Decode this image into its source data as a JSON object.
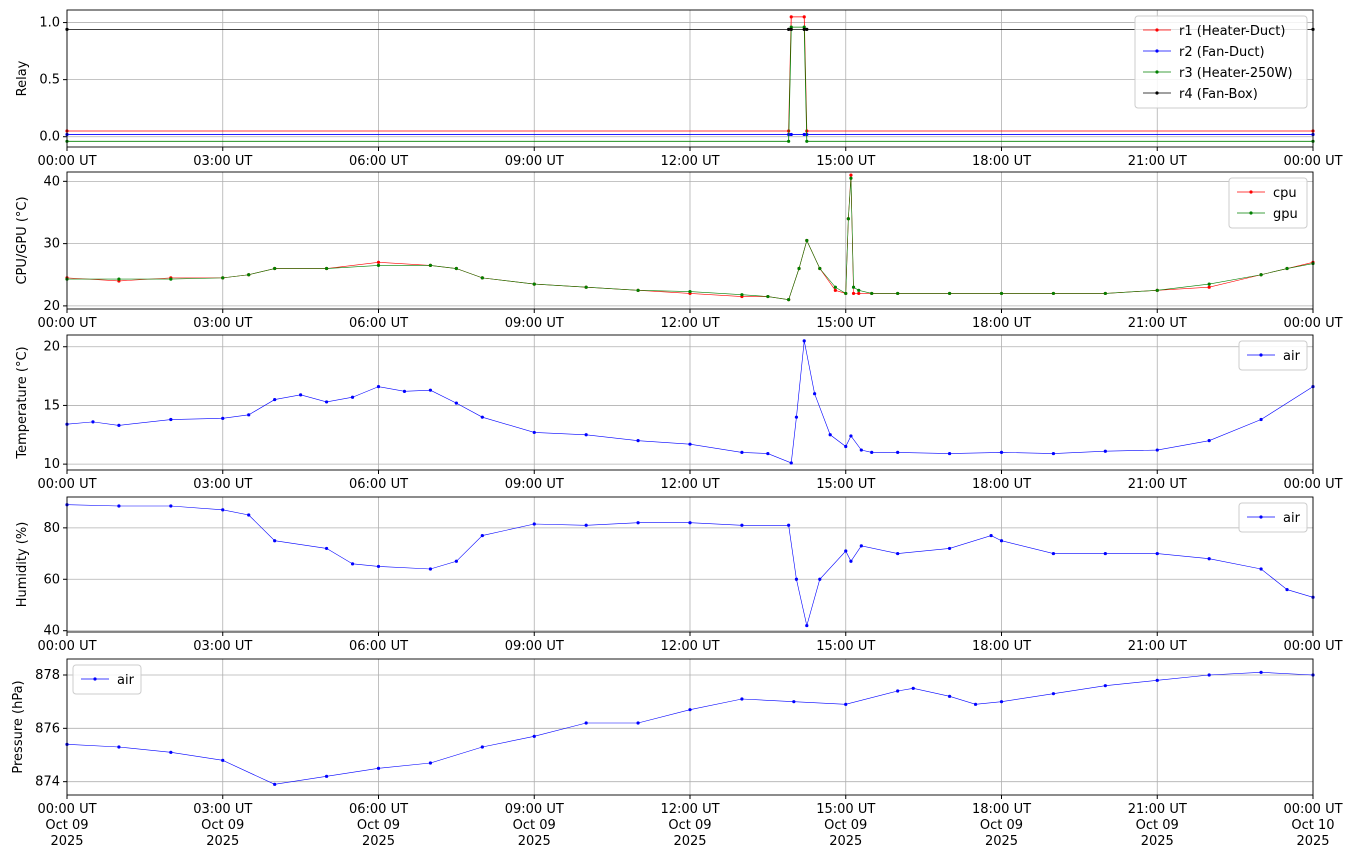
{
  "chart_data": [
    {
      "type": "line",
      "ylabel": "Relay",
      "legend": "upper right",
      "grid": true,
      "x": [
        0,
        13.9,
        13.95,
        14.2,
        14.25,
        24
      ],
      "xlim": [
        0,
        24
      ],
      "xticks": [
        {
          "value": 0,
          "label": "00:00 UT"
        },
        {
          "value": 3,
          "label": "03:00 UT"
        },
        {
          "value": 6,
          "label": "06:00 UT"
        },
        {
          "value": 9,
          "label": "09:00 UT"
        },
        {
          "value": 12,
          "label": "12:00 UT"
        },
        {
          "value": 15,
          "label": "15:00 UT"
        },
        {
          "value": 18,
          "label": "18:00 UT"
        },
        {
          "value": 21,
          "label": "21:00 UT"
        },
        {
          "value": 24,
          "label": "00:00 UT"
        }
      ],
      "ylim": [
        -0.09,
        1.11
      ],
      "yticks": [
        {
          "value": 0,
          "label": "0.0"
        },
        {
          "value": 0.5,
          "label": "0.5"
        },
        {
          "value": 1,
          "label": "1.0"
        }
      ],
      "series": [
        {
          "name": "r1 (Heater-Duct)",
          "color": "#ff0000",
          "values": [
            0.05,
            0.05,
            1.05,
            1.05,
            0.05,
            0.05
          ]
        },
        {
          "name": "r2 (Fan-Duct)",
          "color": "#0000ff",
          "values": [
            0.02,
            0.02,
            0.02,
            0.02,
            0.02,
            0.02
          ]
        },
        {
          "name": "r3 (Heater-250W)",
          "color": "#008000",
          "values": [
            -0.04,
            -0.04,
            0.96,
            0.96,
            -0.04,
            -0.04
          ]
        },
        {
          "name": "r4 (Fan-Box)",
          "color": "#000000",
          "values": [
            0.94,
            0.94,
            0.94,
            0.94,
            0.94,
            0.94
          ]
        }
      ]
    },
    {
      "type": "line",
      "ylabel": "CPU/GPU (°C)",
      "legend": "upper right",
      "grid": true,
      "x": [
        0,
        1,
        2,
        3,
        3.5,
        4,
        5,
        6,
        7,
        7.5,
        8,
        9,
        10,
        11,
        12,
        13,
        13.5,
        13.9,
        14.1,
        14.25,
        14.5,
        14.8,
        15.0,
        15.05,
        15.1,
        15.15,
        15.25,
        15.5,
        16,
        17,
        18,
        19,
        20,
        21,
        22,
        23,
        23.5,
        24
      ],
      "xlim": [
        0,
        24
      ],
      "xticks": [
        {
          "value": 0,
          "label": "00:00 UT"
        },
        {
          "value": 3,
          "label": "03:00 UT"
        },
        {
          "value": 6,
          "label": "06:00 UT"
        },
        {
          "value": 9,
          "label": "09:00 UT"
        },
        {
          "value": 12,
          "label": "12:00 UT"
        },
        {
          "value": 15,
          "label": "15:00 UT"
        },
        {
          "value": 18,
          "label": "18:00 UT"
        },
        {
          "value": 21,
          "label": "21:00 UT"
        },
        {
          "value": 24,
          "label": "00:00 UT"
        }
      ],
      "ylim": [
        19.5,
        41.5
      ],
      "yticks": [
        20,
        30,
        40
      ],
      "series": [
        {
          "name": "cpu",
          "color": "#ff0000",
          "values": [
            24.5,
            24,
            24.5,
            24.5,
            25,
            26,
            26,
            27,
            26.5,
            26,
            24.5,
            23.5,
            23,
            22.5,
            22,
            21.5,
            21.5,
            21,
            26,
            30.5,
            26,
            22.5,
            22,
            34,
            41,
            22,
            22,
            22,
            22,
            22,
            22,
            22,
            22,
            22.5,
            23,
            25,
            26,
            27
          ]
        },
        {
          "name": "gpu",
          "color": "#008000",
          "values": [
            24.3,
            24.3,
            24.3,
            24.5,
            25,
            26,
            26,
            26.5,
            26.5,
            26,
            24.5,
            23.5,
            23,
            22.5,
            22.3,
            21.8,
            21.5,
            21,
            26,
            30.5,
            26,
            23,
            22,
            34,
            40.5,
            23,
            22.5,
            22,
            22,
            22,
            22,
            22,
            22,
            22.5,
            23.5,
            25,
            26,
            26.8
          ]
        }
      ]
    },
    {
      "type": "line",
      "ylabel": "Temperature (°C)",
      "legend": "upper right",
      "grid": true,
      "x": [
        0,
        0.5,
        1,
        2,
        3,
        3.5,
        4,
        4.5,
        5,
        5.5,
        6,
        6.5,
        7,
        7.5,
        8,
        9,
        10,
        11,
        12,
        13,
        13.5,
        13.95,
        14.05,
        14.2,
        14.4,
        14.7,
        15,
        15.1,
        15.3,
        15.5,
        16,
        17,
        18,
        19,
        20,
        21,
        22,
        23,
        24
      ],
      "xlim": [
        0,
        24
      ],
      "xticks": [
        {
          "value": 0,
          "label": "00:00 UT"
        },
        {
          "value": 3,
          "label": "03:00 UT"
        },
        {
          "value": 6,
          "label": "06:00 UT"
        },
        {
          "value": 9,
          "label": "09:00 UT"
        },
        {
          "value": 12,
          "label": "12:00 UT"
        },
        {
          "value": 15,
          "label": "15:00 UT"
        },
        {
          "value": 18,
          "label": "18:00 UT"
        },
        {
          "value": 21,
          "label": "21:00 UT"
        },
        {
          "value": 24,
          "label": "00:00 UT"
        }
      ],
      "ylim": [
        9.5,
        21
      ],
      "yticks": [
        10,
        15,
        20
      ],
      "series": [
        {
          "name": "air",
          "color": "#0000ff",
          "values": [
            13.4,
            13.6,
            13.3,
            13.8,
            13.9,
            14.2,
            15.5,
            15.9,
            15.3,
            15.7,
            16.6,
            16.2,
            16.3,
            15.2,
            14.0,
            12.7,
            12.5,
            12.0,
            11.7,
            11.0,
            10.9,
            10.1,
            14,
            20.5,
            16,
            12.5,
            11.5,
            12.4,
            11.2,
            11.0,
            11.0,
            10.9,
            11.0,
            10.9,
            11.1,
            11.2,
            12,
            13.8,
            16.6
          ]
        }
      ]
    },
    {
      "type": "line",
      "ylabel": "Humidity (%)",
      "legend": "upper right",
      "grid": true,
      "x": [
        0,
        1,
        2,
        3,
        3.5,
        4,
        5,
        5.5,
        6,
        7,
        7.5,
        8,
        9,
        10,
        11,
        12,
        13,
        13.9,
        14.05,
        14.25,
        14.5,
        15,
        15.1,
        15.3,
        16,
        17,
        17.8,
        18,
        19,
        20,
        21,
        22,
        23,
        23.5,
        24
      ],
      "xlim": [
        0,
        24
      ],
      "xticks": [
        {
          "value": 0,
          "label": "00:00 UT"
        },
        {
          "value": 3,
          "label": "03:00 UT"
        },
        {
          "value": 6,
          "label": "06:00 UT"
        },
        {
          "value": 9,
          "label": "09:00 UT"
        },
        {
          "value": 12,
          "label": "12:00 UT"
        },
        {
          "value": 15,
          "label": "15:00 UT"
        },
        {
          "value": 18,
          "label": "18:00 UT"
        },
        {
          "value": 21,
          "label": "21:00 UT"
        },
        {
          "value": 24,
          "label": "00:00 UT"
        }
      ],
      "ylim": [
        39.5,
        92
      ],
      "yticks": [
        40,
        60,
        80
      ],
      "series": [
        {
          "name": "air",
          "color": "#0000ff",
          "values": [
            89,
            88.5,
            88.5,
            87,
            85,
            75,
            72,
            66,
            65,
            64,
            67,
            77,
            81.5,
            81,
            82,
            82,
            81,
            81,
            60,
            42,
            60,
            71,
            67,
            73,
            70,
            72,
            77,
            75,
            70,
            70,
            70,
            68,
            64,
            56,
            53
          ]
        }
      ]
    },
    {
      "type": "line",
      "ylabel": "Pressure (hPa)",
      "legend": "upper left",
      "grid": true,
      "x": [
        0,
        1,
        2,
        3,
        4,
        5,
        6,
        7,
        8,
        9,
        10,
        11,
        12,
        13,
        14,
        15,
        16,
        16.3,
        17,
        17.5,
        18,
        19,
        20,
        21,
        22,
        23,
        24
      ],
      "xlim": [
        0,
        24
      ],
      "xticks": [
        {
          "value": 0,
          "label": "00:00 UT\nOct 09\n2025"
        },
        {
          "value": 3,
          "label": "03:00 UT\nOct 09\n2025"
        },
        {
          "value": 6,
          "label": "06:00 UT\nOct 09\n2025"
        },
        {
          "value": 9,
          "label": "09:00 UT\nOct 09\n2025"
        },
        {
          "value": 12,
          "label": "12:00 UT\nOct 09\n2025"
        },
        {
          "value": 15,
          "label": "15:00 UT\nOct 09\n2025"
        },
        {
          "value": 18,
          "label": "18:00 UT\nOct 09\n2025"
        },
        {
          "value": 21,
          "label": "21:00 UT\nOct 09\n2025"
        },
        {
          "value": 24,
          "label": "00:00 UT\nOct 10\n2025"
        }
      ],
      "ylim": [
        873.5,
        878.6
      ],
      "yticks": [
        874,
        876,
        878
      ],
      "series": [
        {
          "name": "air",
          "color": "#0000ff",
          "values": [
            875.4,
            875.3,
            875.1,
            874.8,
            873.9,
            874.2,
            874.5,
            874.7,
            875.3,
            875.7,
            876.2,
            876.2,
            876.7,
            877.1,
            877.0,
            876.9,
            877.4,
            877.5,
            877.2,
            876.9,
            877.0,
            877.3,
            877.6,
            877.8,
            878.0,
            878.1,
            878.0
          ]
        }
      ]
    }
  ]
}
